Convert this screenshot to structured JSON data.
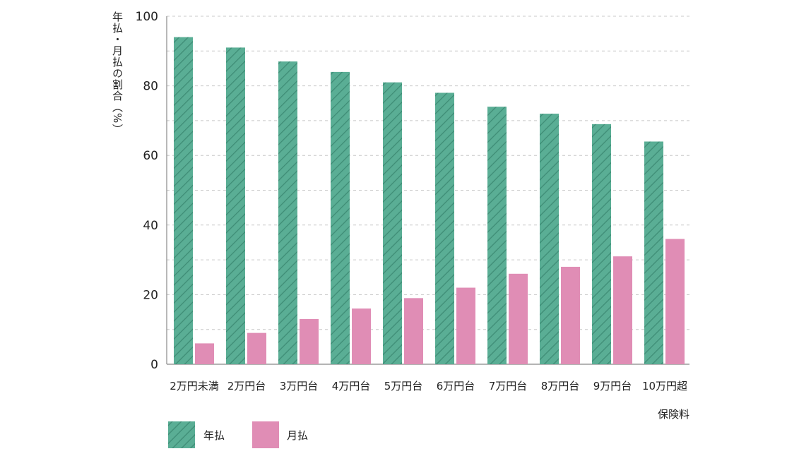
{
  "chart_data": {
    "type": "bar",
    "title": "",
    "xlabel": "保険料",
    "ylabel": "年払・月払の割合（%）",
    "ylim": [
      0,
      100
    ],
    "yticks": [
      0,
      20,
      40,
      60,
      80,
      100
    ],
    "grid": true,
    "legend_position": "bottom-left",
    "categories": [
      "2万円未満",
      "2万円台",
      "3万円台",
      "4万円台",
      "5万円台",
      "6万円台",
      "7万円台",
      "8万円台",
      "9万円台",
      "10万円超"
    ],
    "series": [
      {
        "name": "年払",
        "color": "#5aae95",
        "pattern": "diagonal-hatch",
        "values": [
          94,
          91,
          87,
          84,
          81,
          78,
          74,
          72,
          69,
          64
        ]
      },
      {
        "name": "月払",
        "color": "#e08db5",
        "values": [
          6,
          9,
          13,
          16,
          19,
          22,
          26,
          28,
          31,
          36
        ]
      }
    ]
  }
}
